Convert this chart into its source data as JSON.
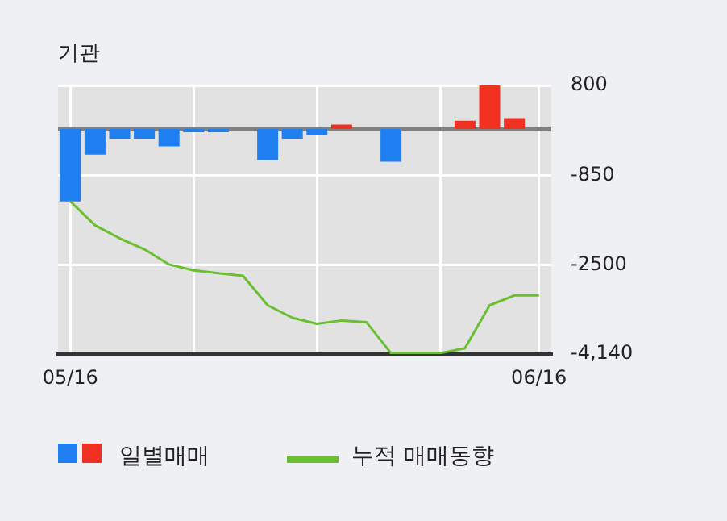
{
  "chart_data": {
    "type": "bar",
    "title": "기관",
    "categories": [
      "05/16",
      null,
      null,
      null,
      null,
      null,
      null,
      null,
      null,
      null,
      null,
      null,
      null,
      null,
      null,
      null,
      null,
      null,
      null,
      "06/16"
    ],
    "series": [
      {
        "name": "일별매매",
        "colors": [
          "#1f7ff0",
          "#1f7ff0",
          "#1f7ff0",
          "#1f7ff0",
          "#1f7ff0",
          "#1f7ff0",
          "#1f7ff0",
          "#1f7ff0",
          "#1f7ff0",
          "#1f7ff0",
          "#1f7ff0",
          "#f03020",
          "#1f7ff0",
          "#1f7ff0",
          "#1f7ff0",
          "#1f7ff0",
          "#f03020",
          "#f03020",
          "#f03020",
          "#1f7ff0"
        ],
        "values": [
          -1330,
          -470,
          -180,
          -180,
          -320,
          -60,
          -60,
          0,
          -570,
          -180,
          -120,
          80,
          0,
          -600,
          0,
          0,
          150,
          800,
          200,
          0
        ]
      },
      {
        "name": "누적 매매동향",
        "type": "line",
        "color": "#6abf30",
        "values": [
          -1330,
          -1770,
          -2010,
          -2210,
          -2490,
          -2600,
          -2650,
          -2700,
          -3240,
          -3470,
          -3580,
          -3520,
          -3550,
          -4120,
          -4120,
          -4120,
          -4030,
          -3240,
          -3060,
          -3060
        ]
      }
    ],
    "ylim": [
      -4140,
      800
    ],
    "yticks": [
      800,
      -850,
      -2500,
      {
        "value": -4140,
        "label": "-4,140"
      }
    ],
    "grid": true,
    "legend": "bottom",
    "marker": "none"
  }
}
